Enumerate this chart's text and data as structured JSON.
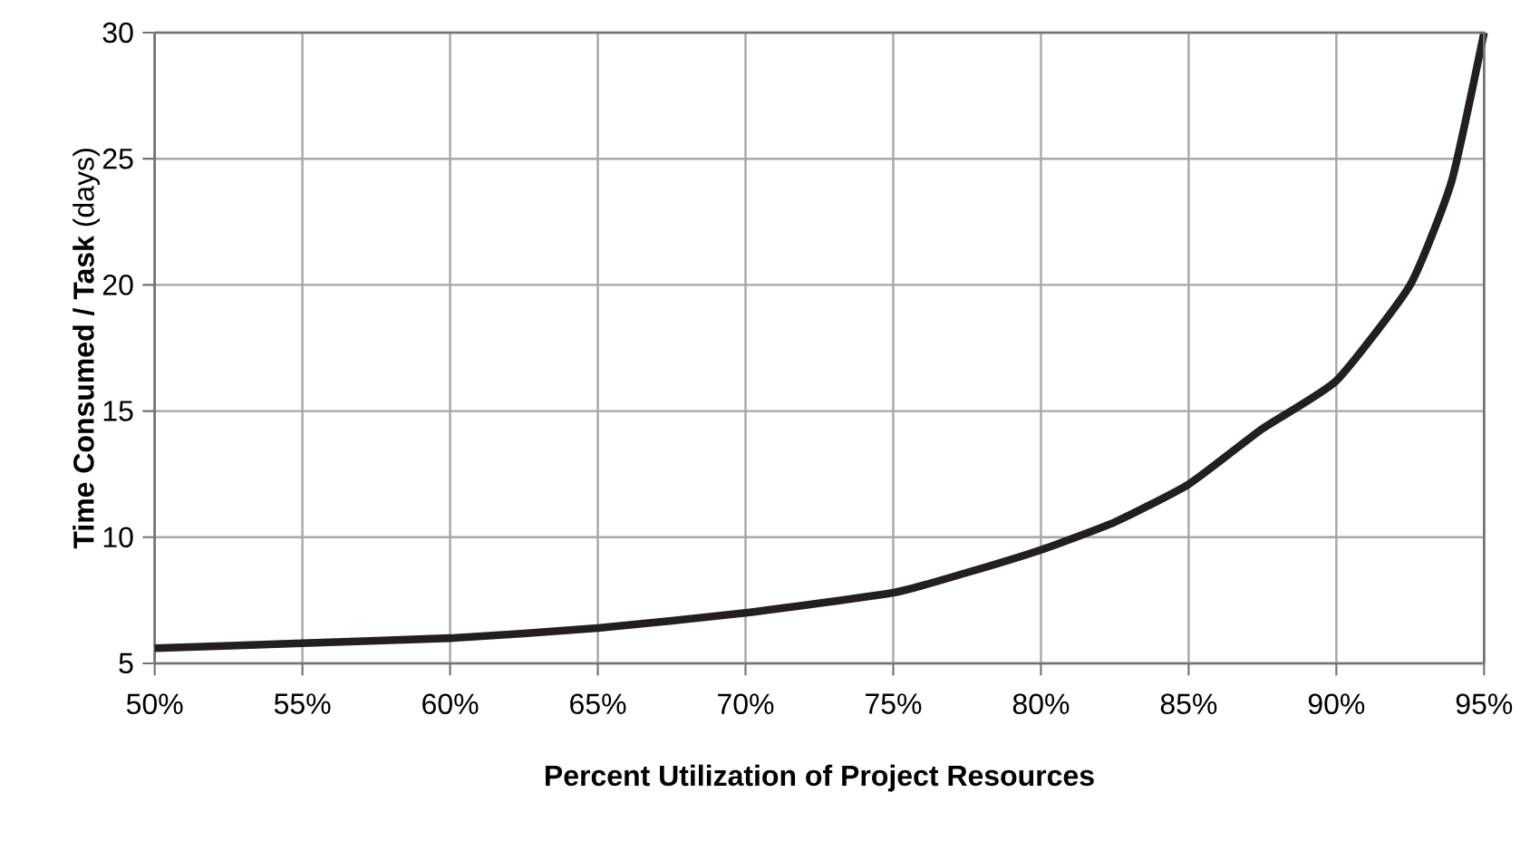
{
  "chart_data": {
    "type": "line",
    "xlabel": "Percent Utilization of Project Resources",
    "ylabel": "**Time Consumed / Task** (days)",
    "x": [
      50,
      55,
      60,
      65,
      70,
      75,
      77.5,
      80,
      82.5,
      85,
      87.5,
      90,
      92.5,
      93.9,
      95
    ],
    "series": [
      {
        "color": "#231f20",
        "values": [
          5.6,
          5.8,
          6.0,
          6.4,
          7.0,
          7.8,
          8.6,
          9.5,
          10.6,
          12.1,
          14.3,
          16.2,
          20,
          24.1,
          30
        ]
      }
    ],
    "xlim": [
      50,
      95
    ],
    "xticks": [
      {
        "value": 50,
        "label": "50%"
      },
      {
        "value": 55,
        "label": "55%"
      },
      {
        "value": 60,
        "label": "60%"
      },
      {
        "value": 65,
        "label": "65%"
      },
      {
        "value": 70,
        "label": "70%"
      },
      {
        "value": 75,
        "label": "75%"
      },
      {
        "value": 80,
        "label": "80%"
      },
      {
        "value": 85,
        "label": "85%"
      },
      {
        "value": 90,
        "label": "90%"
      },
      {
        "value": 95,
        "label": "95%"
      }
    ],
    "ylim": [
      5,
      30
    ],
    "yticks": [
      5,
      10,
      15,
      20,
      25,
      30
    ],
    "grid": true,
    "marker": "none",
    "line_style": "solid"
  }
}
